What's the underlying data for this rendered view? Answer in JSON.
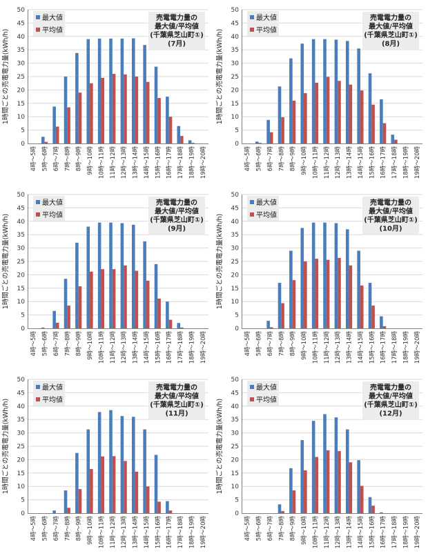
{
  "colors": {
    "max": "#4a7ebb",
    "avg": "#c0504d",
    "grid": "#d9d9d9",
    "axis": "#7f7f7f",
    "title_box": "#ececec"
  },
  "chart_data": [
    {
      "type": "bar",
      "title": [
        "売電電力量の",
        "最大値/平均値",
        "(千葉県芝山町①)",
        "(7月)"
      ],
      "ylabel": "1時間ごとの売電電力量(kWh/h)",
      "ylim": [
        0,
        50
      ],
      "yticks": [
        0,
        5,
        10,
        15,
        20,
        25,
        30,
        35,
        40,
        45,
        50
      ],
      "categories": [
        "4時～5時",
        "5時～6時",
        "6時～7時",
        "7時～8時",
        "8時～9時",
        "9時～10時",
        "10時～11時",
        "11時～12時",
        "12時～13時",
        "13時～14時",
        "14時～15時",
        "15時～16時",
        "16時～17時",
        "17時～18時",
        "18時～19時",
        "19時～20時"
      ],
      "series": [
        {
          "name": "最大値",
          "values": [
            0,
            2.5,
            13.8,
            25,
            33.8,
            39,
            39.2,
            39.2,
            39.2,
            39.3,
            36.8,
            28.7,
            17.5,
            6.5,
            1.2,
            0
          ]
        },
        {
          "name": "平均値",
          "values": [
            0,
            0.6,
            6.3,
            13.5,
            19,
            22.5,
            24.5,
            26,
            25.8,
            25,
            23,
            17,
            10,
            2.8,
            0.2,
            0
          ]
        }
      ],
      "legend_position": "top-left",
      "grid": true
    },
    {
      "type": "bar",
      "title": [
        "売電電力量の",
        "最大値/平均値",
        "(千葉県芝山町①)",
        "(8月)"
      ],
      "ylabel": "1時間ごとの売電電力量(kWh/h)",
      "ylim": [
        0,
        50
      ],
      "yticks": [
        0,
        5,
        10,
        15,
        20,
        25,
        30,
        35,
        40,
        45,
        50
      ],
      "categories": [
        "4時～5時",
        "5時～6時",
        "6時～7時",
        "7時～8時",
        "8時～9時",
        "9時～10時",
        "10時～11時",
        "11時～12時",
        "12時～13時",
        "13時～14時",
        "14時～15時",
        "15時～16時",
        "16時～17時",
        "17時～18時",
        "18時～19時",
        "19時～20時"
      ],
      "series": [
        {
          "name": "最大値",
          "values": [
            0,
            0.7,
            8.8,
            21.3,
            31.8,
            37.3,
            39,
            39,
            38.8,
            38.3,
            35.5,
            26.2,
            16.5,
            3.3,
            0,
            0
          ]
        },
        {
          "name": "平均値",
          "values": [
            0,
            0.2,
            4.2,
            9.8,
            16,
            18.8,
            22.7,
            24.9,
            23.4,
            22,
            19.8,
            14.5,
            7.6,
            1.4,
            0,
            0
          ]
        }
      ],
      "legend_position": "top-left",
      "grid": true
    },
    {
      "type": "bar",
      "title": [
        "売電電力量の",
        "最大値/平均値",
        "(千葉県芝山町①)",
        "(9月)"
      ],
      "ylabel": "1時間ごとの売電電力量(kWh/h)",
      "ylim": [
        0,
        50
      ],
      "yticks": [
        0,
        5,
        10,
        15,
        20,
        25,
        30,
        35,
        40,
        45,
        50
      ],
      "categories": [
        "4時～5時",
        "5時～6時",
        "6時～7時",
        "7時～8時",
        "8時～9時",
        "9時～10時",
        "10時～11時",
        "11時～12時",
        "12時～13時",
        "13時～14時",
        "14時～15時",
        "15時～16時",
        "16時～17時",
        "17時～18時",
        "18時～19時",
        "19時～20時"
      ],
      "series": [
        {
          "name": "最大値",
          "values": [
            0,
            0.3,
            6.5,
            18.5,
            32,
            38,
            39.5,
            39.5,
            39.3,
            38.7,
            32.5,
            24,
            10,
            2,
            0,
            0
          ]
        },
        {
          "name": "平均値",
          "values": [
            0,
            0,
            2.1,
            8.5,
            15.7,
            21.2,
            22.1,
            22.1,
            23.5,
            21.5,
            17.8,
            11.1,
            3.2,
            0.3,
            0,
            0
          ]
        }
      ],
      "legend_position": "top-left",
      "grid": true
    },
    {
      "type": "bar",
      "title": [
        "売電電力量の",
        "最大値/平均値",
        "(千葉県芝山町①)",
        "(10月)"
      ],
      "ylabel": "1時間ごとの売電電力量(kWh/h)",
      "ylim": [
        0,
        50
      ],
      "yticks": [
        0,
        5,
        10,
        15,
        20,
        25,
        30,
        35,
        40,
        45,
        50
      ],
      "categories": [
        "4時～5時",
        "5時～6時",
        "6時～7時",
        "7時～8時",
        "8時～9時",
        "9時～10時",
        "10時～11時",
        "11時～12時",
        "12時～13時",
        "13時～14時",
        "14時～15時",
        "15時～16時",
        "16時～17時",
        "17時～18時",
        "18時～19時",
        "19時～20時"
      ],
      "series": [
        {
          "name": "最大値",
          "values": [
            0,
            0,
            2.8,
            17,
            29,
            37.5,
            39.5,
            39.5,
            39.3,
            37,
            29,
            17,
            4.5,
            0,
            0,
            0
          ]
        },
        {
          "name": "平均値",
          "values": [
            0,
            0,
            0.4,
            9.4,
            18,
            25,
            26,
            25.6,
            26.3,
            23.5,
            16,
            8.5,
            0.8,
            0,
            0,
            0
          ]
        }
      ],
      "legend_position": "top-left",
      "grid": true
    },
    {
      "type": "bar",
      "title": [
        "売電電力量の",
        "最大値/平均値",
        "(千葉県芝山町①)",
        "(11月)"
      ],
      "ylabel": "1時間ごとの売電電力量(kWh/h)",
      "ylim": [
        0,
        50
      ],
      "yticks": [
        0,
        5,
        10,
        15,
        20,
        25,
        30,
        35,
        40,
        45,
        50
      ],
      "categories": [
        "4時～5時",
        "5時～6時",
        "6時～7時",
        "7時～8時",
        "8時～9時",
        "9時～10時",
        "10時～11時",
        "11時～12時",
        "12時～13時",
        "13時～14時",
        "14時～15時",
        "15時～16時",
        "16時～17時",
        "17時～18時",
        "18時～19時",
        "19時～20時"
      ],
      "series": [
        {
          "name": "最大値",
          "values": [
            0,
            0,
            1,
            8.5,
            22.5,
            31.3,
            37.8,
            38.5,
            36.3,
            36,
            31.3,
            21.8,
            4.5,
            0,
            0,
            0
          ]
        },
        {
          "name": "平均値",
          "values": [
            0,
            0,
            0,
            2,
            9,
            16.5,
            21.2,
            21.3,
            19.5,
            15.5,
            10,
            4.3,
            1,
            0,
            0,
            0
          ]
        }
      ],
      "legend_position": "top-left",
      "grid": true
    },
    {
      "type": "bar",
      "title": [
        "売電電力量の",
        "最大値/平均値",
        "(千葉県芝山町①)",
        "(12月)"
      ],
      "ylabel": "1時間ごとの売電電力量(kWh/h)",
      "ylim": [
        0,
        50
      ],
      "yticks": [
        0,
        5,
        10,
        15,
        20,
        25,
        30,
        35,
        40,
        45,
        50
      ],
      "categories": [
        "4時～5時",
        "5時～6時",
        "6時～7時",
        "7時～8時",
        "8時～9時",
        "9時～10時",
        "10時～11時",
        "11時～12時",
        "12時～13時",
        "13時～14時",
        "14時～15時",
        "15時～16時",
        "16時～17時",
        "17時～18時",
        "18時～19時",
        "19時～20時"
      ],
      "series": [
        {
          "name": "最大値",
          "values": [
            0,
            0,
            0,
            3.3,
            16.8,
            27.3,
            34.5,
            37,
            35.8,
            31.3,
            19.8,
            6,
            0.3,
            0,
            0,
            0
          ]
        },
        {
          "name": "平均値",
          "values": [
            0,
            0,
            0,
            0.8,
            8.5,
            16,
            21,
            23.5,
            23.2,
            19,
            10.2,
            2.8,
            0,
            0,
            0,
            0
          ]
        }
      ],
      "legend_position": "top-left",
      "grid": true
    }
  ]
}
